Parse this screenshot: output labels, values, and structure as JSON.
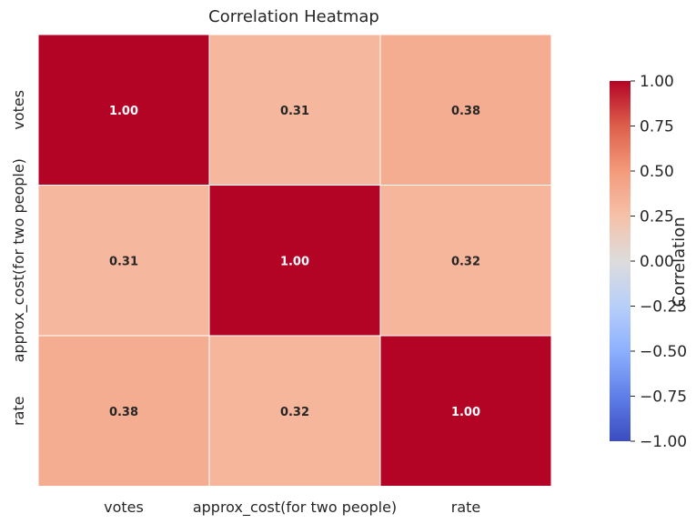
{
  "chart_data": {
    "type": "heatmap",
    "title": "Correlation Heatmap",
    "x_labels": [
      "votes",
      "approx_cost(for two people)",
      "rate"
    ],
    "y_labels": [
      "votes",
      "approx_cost(for two people)",
      "rate"
    ],
    "values": [
      [
        1.0,
        0.31,
        0.38
      ],
      [
        0.31,
        1.0,
        0.32
      ],
      [
        0.38,
        0.32,
        1.0
      ]
    ],
    "value_format": "0.00",
    "colormap": "coolwarm",
    "vmin": -1.0,
    "vmax": 1.0,
    "colorbar": {
      "label": "Correlation",
      "ticks": [
        1.0,
        0.75,
        0.5,
        0.25,
        0.0,
        -0.25,
        -0.5,
        -0.75,
        -1.0
      ],
      "tick_labels": [
        "1.00",
        "0.75",
        "0.50",
        "0.25",
        "0.00",
        "−0.25",
        "−0.50",
        "−0.75",
        "−1.00"
      ]
    },
    "colors": {
      "low": "#3b4cc0",
      "mid": "#dddddd",
      "high": "#b40426"
    }
  }
}
